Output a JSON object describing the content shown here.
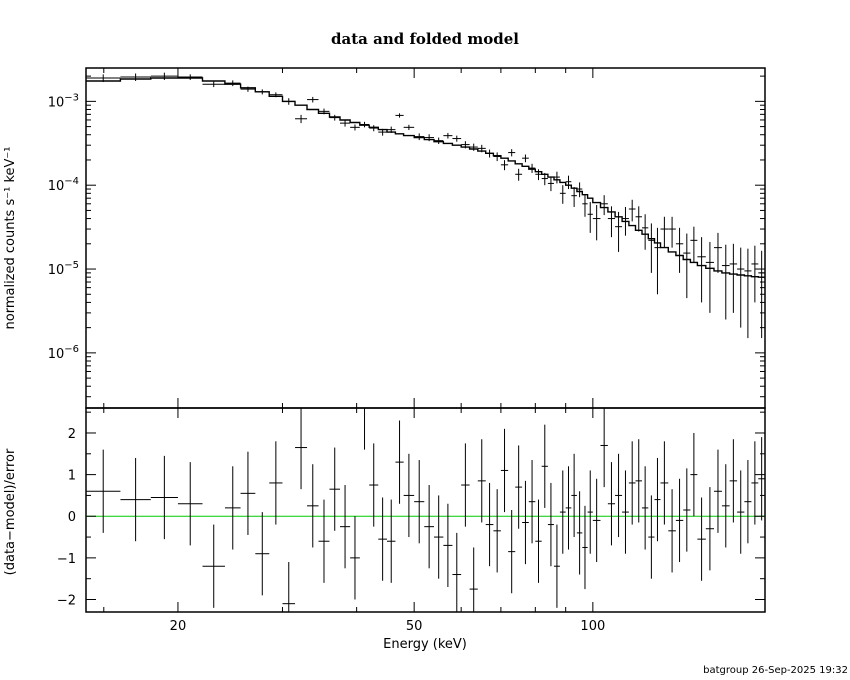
{
  "title": "data and folded model",
  "footer": "batgroup 26-Sep-2025 19:32",
  "colors": {
    "axes": "#000000",
    "data": "#000000",
    "model": "#000000",
    "zero_line": "#00cc00"
  },
  "chart_data": [
    {
      "type": "line",
      "panel": "top",
      "title": "data and folded model",
      "xlabel": "",
      "ylabel": "normalized counts s⁻¹ keV⁻¹",
      "xscale": "log",
      "yscale": "log",
      "xlim": [
        14,
        195
      ],
      "ylim": [
        2.2e-07,
        0.0025
      ],
      "ytick_labels": [
        {
          "value": 0.001,
          "base": "10",
          "exp": "−3"
        },
        {
          "value": 0.0001,
          "base": "10",
          "exp": "−4"
        },
        {
          "value": 1e-05,
          "base": "10",
          "exp": "−5"
        },
        {
          "value": 1e-06,
          "base": "10",
          "exp": "−6"
        }
      ],
      "grid": false,
      "series": [
        {
          "kind": "data_with_errors",
          "x_lo": [
            14.0,
            16.0,
            18.0,
            20.0,
            22.0,
            24.0,
            25.5,
            27.0,
            28.5,
            30.0,
            31.5,
            33.0,
            34.5,
            36.0,
            37.5,
            39.0,
            40.5,
            42.0,
            43.5,
            45.0,
            46.5,
            48.0,
            50.0,
            52.0,
            54.0,
            56.0,
            58.0,
            60.0,
            62.0,
            64.0,
            66.0,
            68.0,
            70.0,
            72.0,
            74.0,
            76.0,
            78.0,
            80.0,
            82.0,
            84.0,
            86.0,
            88.0,
            90.0,
            92.0,
            94.0,
            96.0,
            98.0,
            100.0,
            103.0,
            106.0,
            109.0,
            112.0,
            115.0,
            118.0,
            121.0,
            124.0,
            127.0,
            130.0,
            134.0,
            138.0,
            142.0,
            146.0,
            150.0,
            155.0,
            160.0,
            165.0,
            170.0,
            175.0,
            180.0,
            185.0,
            190.0
          ],
          "x_hi": [
            16.0,
            18.0,
            20.0,
            22.0,
            24.0,
            25.5,
            27.0,
            28.5,
            30.0,
            31.5,
            33.0,
            34.5,
            36.0,
            37.5,
            39.0,
            40.5,
            42.0,
            43.5,
            45.0,
            46.5,
            48.0,
            50.0,
            52.0,
            54.0,
            56.0,
            58.0,
            60.0,
            62.0,
            64.0,
            66.0,
            68.0,
            70.0,
            72.0,
            74.0,
            76.0,
            78.0,
            80.0,
            82.0,
            84.0,
            86.0,
            88.0,
            90.0,
            92.0,
            94.0,
            96.0,
            98.0,
            100.0,
            103.0,
            106.0,
            109.0,
            112.0,
            115.0,
            118.0,
            121.0,
            124.0,
            127.0,
            130.0,
            134.0,
            138.0,
            142.0,
            146.0,
            150.0,
            155.0,
            160.0,
            165.0,
            170.0,
            175.0,
            180.0,
            185.0,
            190.0,
            195.0
          ],
          "y": [
            0.0019,
            0.00195,
            0.002,
            0.00195,
            0.0016,
            0.00165,
            0.0014,
            0.0013,
            0.0012,
            0.001,
            0.00062,
            0.00105,
            0.00076,
            0.00064,
            0.00055,
            0.00049,
            0.00053,
            0.00048,
            0.00043,
            0.00046,
            0.00068,
            0.00049,
            0.00038,
            0.00037,
            0.00034,
            0.00039,
            0.00036,
            0.000305,
            0.000285,
            0.000275,
            0.00024,
            0.00022,
            0.000175,
            0.000245,
            0.000135,
            0.00021,
            0.00016,
            0.000135,
            0.00012,
            0.000105,
            0.000125,
            8e-05,
            0.00011,
            7.5e-05,
            9e-05,
            6e-05,
            4.5e-05,
            4e-05,
            6e-05,
            4e-05,
            3.2e-05,
            4e-05,
            5.2e-05,
            4.2e-05,
            3.1e-05,
            2.2e-05,
            1.8e-05,
            3e-05,
            3e-05,
            2e-05,
            1.55e-05,
            2.2e-05,
            1.4e-05,
            1.2e-05,
            1.8e-05,
            1.1e-05,
            1.15e-05,
            1e-05,
            9.5e-06,
            1.15e-05,
            9e-06
          ],
          "y_err": [
            0.0002,
            0.0002,
            0.0002,
            0.00015,
            0.00012,
            0.00013,
            0.0001,
            9e-05,
            8e-05,
            9e-05,
            7e-05,
            8e-05,
            6e-05,
            5e-05,
            5e-05,
            4e-05,
            4e-05,
            4e-05,
            4e-05,
            4e-05,
            4e-05,
            3.5e-05,
            3.5e-05,
            3.5e-05,
            3e-05,
            3e-05,
            3e-05,
            3e-05,
            2.8e-05,
            2.8e-05,
            2.6e-05,
            2.6e-05,
            2.4e-05,
            2.4e-05,
            2.2e-05,
            2.2e-05,
            2e-05,
            2e-05,
            2e-05,
            2e-05,
            2e-05,
            2e-05,
            2e-05,
            2e-05,
            1.8e-05,
            1.8e-05,
            1.8e-05,
            1.8e-05,
            1.6e-05,
            1.6e-05,
            1.6e-05,
            1.5e-05,
            1.5e-05,
            1.4e-05,
            1.4e-05,
            1.3e-05,
            1.3e-05,
            1.2e-05,
            1.2e-05,
            1.1e-05,
            1.1e-05,
            1e-05,
            1e-05,
            9e-06,
            9e-06,
            8.5e-06,
            8.5e-06,
            8e-06,
            8e-06,
            7.5e-06,
            7.5e-06
          ]
        },
        {
          "kind": "model_step",
          "x_lo": [
            14.0,
            16.0,
            18.0,
            20.0,
            22.0,
            24.0,
            25.5,
            27.0,
            28.5,
            30.0,
            31.5,
            33.0,
            34.5,
            36.0,
            37.5,
            39.0,
            40.5,
            42.0,
            43.5,
            45.0,
            46.5,
            48.0,
            50.0,
            52.0,
            54.0,
            56.0,
            58.0,
            60.0,
            62.0,
            64.0,
            66.0,
            68.0,
            70.0,
            72.0,
            74.0,
            76.0,
            78.0,
            80.0,
            82.0,
            84.0,
            86.0,
            88.0,
            90.0,
            92.0,
            94.0,
            96.0,
            98.0,
            100.0,
            103.0,
            106.0,
            109.0,
            112.0,
            115.0,
            118.0,
            121.0,
            124.0,
            127.0,
            130.0,
            134.0,
            138.0,
            142.0,
            146.0,
            150.0,
            155.0,
            160.0,
            165.0,
            170.0,
            175.0,
            180.0,
            185.0,
            190.0
          ],
          "x_hi": [
            16.0,
            18.0,
            20.0,
            22.0,
            24.0,
            25.5,
            27.0,
            28.5,
            30.0,
            31.5,
            33.0,
            34.5,
            36.0,
            37.5,
            39.0,
            40.5,
            42.0,
            43.5,
            45.0,
            46.5,
            48.0,
            50.0,
            52.0,
            54.0,
            56.0,
            58.0,
            60.0,
            62.0,
            64.0,
            66.0,
            68.0,
            70.0,
            72.0,
            74.0,
            76.0,
            78.0,
            80.0,
            82.0,
            84.0,
            86.0,
            88.0,
            90.0,
            92.0,
            94.0,
            96.0,
            98.0,
            100.0,
            103.0,
            106.0,
            109.0,
            112.0,
            115.0,
            118.0,
            121.0,
            124.0,
            127.0,
            130.0,
            134.0,
            138.0,
            142.0,
            146.0,
            150.0,
            155.0,
            160.0,
            165.0,
            170.0,
            175.0,
            180.0,
            185.0,
            190.0,
            195.0
          ],
          "y": [
            0.00175,
            0.00185,
            0.0019,
            0.0019,
            0.00175,
            0.0016,
            0.00145,
            0.0013,
            0.00115,
            0.001,
            0.0009,
            0.0008,
            0.00072,
            0.00065,
            0.0006,
            0.00056,
            0.00052,
            0.00049,
            0.00046,
            0.00043,
            0.00041,
            0.00039,
            0.00037,
            0.00035,
            0.00033,
            0.000315,
            0.0003,
            0.000285,
            0.00027,
            0.000255,
            0.00024,
            0.000225,
            0.00021,
            0.000195,
            0.00018,
            0.000168,
            0.000155,
            0.000145,
            0.000135,
            0.000125,
            0.000116,
            0.000108,
            0.0001,
            9.2e-05,
            8.4e-05,
            7.7e-05,
            7e-05,
            6.2e-05,
            5.4e-05,
            4.8e-05,
            4.2e-05,
            3.7e-05,
            3.3e-05,
            2.9e-05,
            2.6e-05,
            2.3e-05,
            2.05e-05,
            1.8e-05,
            1.6e-05,
            1.45e-05,
            1.3e-05,
            1.2e-05,
            1.1e-05,
            1.02e-05,
            9.5e-06,
            9e-06,
            8.7e-06,
            8.5e-06,
            8.3e-06,
            8.1e-06,
            8e-06
          ]
        }
      ]
    },
    {
      "type": "scatter",
      "panel": "bottom",
      "xlabel": "Energy (keV)",
      "ylabel": "(data−model)/error",
      "xscale": "log",
      "xlim": [
        14,
        195
      ],
      "ylim": [
        -2.3,
        2.6
      ],
      "xticks": [
        20,
        50,
        100
      ],
      "xtick_labels": [
        "20",
        "50",
        "100"
      ],
      "yticks": [
        -2,
        -1,
        0,
        1,
        2
      ],
      "ytick_labels": [
        "−2",
        "−1",
        "0",
        "1",
        "2"
      ],
      "zero_line": 0,
      "grid": false,
      "series": [
        {
          "kind": "residuals",
          "x_lo": [
            14.0,
            16.0,
            18.0,
            20.0,
            22.0,
            24.0,
            25.5,
            27.0,
            28.5,
            30.0,
            31.5,
            33.0,
            34.5,
            36.0,
            37.5,
            39.0,
            40.5,
            42.0,
            43.5,
            45.0,
            46.5,
            48.0,
            50.0,
            52.0,
            54.0,
            56.0,
            58.0,
            60.0,
            62.0,
            64.0,
            66.0,
            68.0,
            70.0,
            72.0,
            74.0,
            76.0,
            78.0,
            80.0,
            82.0,
            84.0,
            86.0,
            88.0,
            90.0,
            92.0,
            94.0,
            96.0,
            98.0,
            100.0,
            103.0,
            106.0,
            109.0,
            112.0,
            115.0,
            118.0,
            121.0,
            124.0,
            127.0,
            130.0,
            134.0,
            138.0,
            142.0,
            146.0,
            150.0,
            155.0,
            160.0,
            165.0,
            170.0,
            175.0,
            180.0,
            185.0,
            190.0
          ],
          "x_hi": [
            16.0,
            18.0,
            20.0,
            22.0,
            24.0,
            25.5,
            27.0,
            28.5,
            30.0,
            31.5,
            33.0,
            34.5,
            36.0,
            37.5,
            39.0,
            40.5,
            42.0,
            43.5,
            45.0,
            46.5,
            48.0,
            50.0,
            52.0,
            54.0,
            56.0,
            58.0,
            60.0,
            62.0,
            64.0,
            66.0,
            68.0,
            70.0,
            72.0,
            74.0,
            76.0,
            78.0,
            80.0,
            82.0,
            84.0,
            86.0,
            88.0,
            90.0,
            92.0,
            94.0,
            96.0,
            98.0,
            100.0,
            103.0,
            106.0,
            109.0,
            112.0,
            115.0,
            118.0,
            121.0,
            124.0,
            127.0,
            130.0,
            134.0,
            138.0,
            142.0,
            146.0,
            150.0,
            155.0,
            160.0,
            165.0,
            170.0,
            175.0,
            180.0,
            185.0,
            190.0,
            195.0
          ],
          "y": [
            0.6,
            0.4,
            0.45,
            0.3,
            -1.2,
            0.2,
            0.55,
            -0.9,
            0.8,
            -2.1,
            1.65,
            0.25,
            -0.6,
            0.65,
            -0.25,
            -1.0,
            2.6,
            0.75,
            -0.55,
            -0.6,
            1.3,
            0.5,
            0.35,
            -0.25,
            -0.5,
            -0.7,
            -1.4,
            0.75,
            -1.75,
            0.85,
            -0.2,
            -0.35,
            1.1,
            -0.85,
            0.7,
            -0.15,
            0.35,
            -0.6,
            1.2,
            -0.2,
            -1.2,
            0.1,
            0.2,
            0.5,
            -0.4,
            -0.75,
            0.1,
            -0.1,
            1.7,
            0.3,
            0.5,
            0.1,
            0.8,
            0.85,
            0.2,
            -0.5,
            0.4,
            0.8,
            -0.35,
            -0.1,
            0.15,
            1.0,
            -0.55,
            -0.3,
            0.6,
            0.25,
            0.85,
            0.1,
            0.35,
            0.8,
            0.9
          ],
          "y_err": [
            1.0,
            1.0,
            1.0,
            1.0,
            1.0,
            1.0,
            1.0,
            1.0,
            1.0,
            1.0,
            1.0,
            1.0,
            1.0,
            1.0,
            1.0,
            1.0,
            1.0,
            1.0,
            1.0,
            1.0,
            1.0,
            1.0,
            1.0,
            1.0,
            1.0,
            1.0,
            1.0,
            1.0,
            1.0,
            1.0,
            1.0,
            1.0,
            1.0,
            1.0,
            1.0,
            1.0,
            1.0,
            1.0,
            1.0,
            1.0,
            1.0,
            1.0,
            1.0,
            1.0,
            1.0,
            1.0,
            1.0,
            1.0,
            1.0,
            1.0,
            1.0,
            1.0,
            1.0,
            1.0,
            1.0,
            1.0,
            1.0,
            1.0,
            1.0,
            1.0,
            1.0,
            1.0,
            1.0,
            1.0,
            1.0,
            1.0,
            1.0,
            1.0,
            1.0,
            1.0,
            1.0
          ]
        }
      ]
    }
  ]
}
